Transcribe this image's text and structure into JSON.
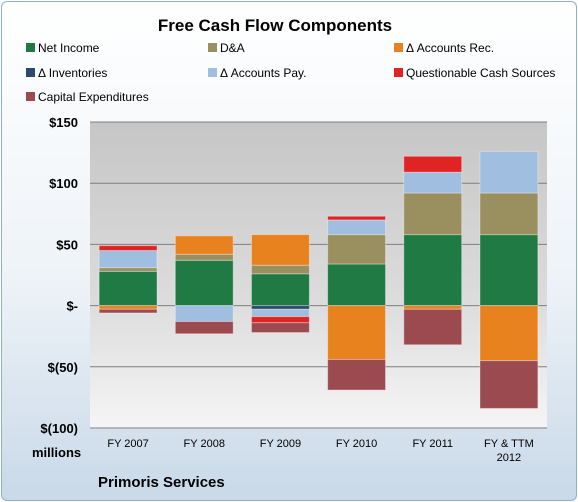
{
  "chart_data": {
    "type": "bar",
    "stacked": true,
    "title": "Free Cash Flow Components",
    "categories": [
      "FY 2007",
      "FY 2008",
      "FY 2009",
      "FY 2010",
      "FY 2011",
      "FY & TTM 2012"
    ],
    "category_lines": [
      [
        "FY 2007"
      ],
      [
        "FY 2008"
      ],
      [
        "FY 2009"
      ],
      [
        "FY 2010"
      ],
      [
        "FY 2011"
      ],
      [
        "FY & TTM",
        "2012"
      ]
    ],
    "ylim": [
      -100,
      150
    ],
    "yticks": [
      -100,
      -50,
      0,
      50,
      100,
      150
    ],
    "ytick_labels": [
      "$(100)",
      "$(50)",
      "$-",
      "$50",
      "$100",
      "$150"
    ],
    "ylabel": "millions",
    "grid": true,
    "legend_position": "top",
    "series": [
      {
        "name": "Net Income",
        "color": "#1f7a44",
        "values": [
          28,
          37,
          26,
          34,
          58,
          58
        ]
      },
      {
        "name": "D&A",
        "color": "#9a8f5f",
        "values": [
          3,
          5,
          7,
          24,
          34,
          34
        ]
      },
      {
        "name": "Δ Accounts Rec.",
        "color": "#e8821e",
        "values": [
          -3,
          15,
          25,
          -44,
          -3,
          -45
        ]
      },
      {
        "name": "Δ Inventories",
        "color": "#2c4a6e",
        "values": [
          0,
          0,
          -3,
          0,
          0,
          0
        ]
      },
      {
        "name": "Δ Accounts Pay.",
        "color": "#9fbee0",
        "values": [
          14,
          -13,
          -6,
          12,
          17,
          34
        ]
      },
      {
        "name": "Questionable Cash Sources",
        "color": "#e02424",
        "values": [
          4,
          0,
          -5,
          3,
          13,
          0
        ]
      },
      {
        "name": "Capital Expenditures",
        "color": "#9b4a50",
        "values": [
          -3,
          -10,
          -8,
          -25,
          -29,
          -39
        ]
      }
    ]
  },
  "footer": {
    "company": "Primoris Services"
  }
}
